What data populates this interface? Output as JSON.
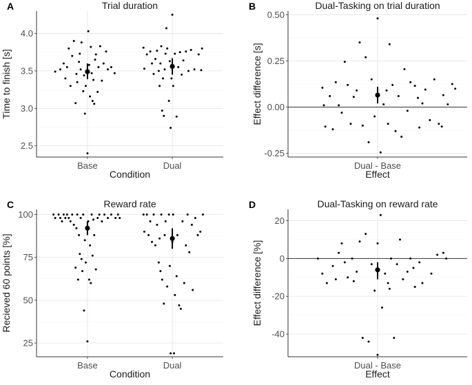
{
  "chart_data": [
    {
      "id": "A",
      "type": "scatter",
      "tag": "A",
      "title": "Trial duration",
      "xlabel": "Condition",
      "ylabel": "Time to finish [s]",
      "categories": [
        "Base",
        "Dual"
      ],
      "ylim": [
        2.35,
        4.3
      ],
      "yticks": [
        2.5,
        3.0,
        3.5,
        4.0
      ],
      "ytick_labels": [
        "2.5",
        "3.0",
        "3.5",
        "4.0"
      ],
      "summary": [
        {
          "category": "Base",
          "mean": 3.49,
          "ci": [
            3.39,
            3.6
          ]
        },
        {
          "category": "Dual",
          "mean": 3.56,
          "ci": [
            3.45,
            3.67
          ]
        }
      ],
      "points": [
        {
          "x": 0.62,
          "y": 3.49
        },
        {
          "x": 0.68,
          "y": 3.52
        },
        {
          "x": 0.72,
          "y": 3.6
        },
        {
          "x": 0.74,
          "y": 3.4
        },
        {
          "x": 0.76,
          "y": 3.55
        },
        {
          "x": 0.78,
          "y": 3.8
        },
        {
          "x": 0.8,
          "y": 3.3
        },
        {
          "x": 0.82,
          "y": 3.7
        },
        {
          "x": 0.84,
          "y": 3.9
        },
        {
          "x": 0.86,
          "y": 3.07
        },
        {
          "x": 0.87,
          "y": 3.46
        },
        {
          "x": 0.88,
          "y": 3.35
        },
        {
          "x": 0.9,
          "y": 3.62
        },
        {
          "x": 0.91,
          "y": 3.73
        },
        {
          "x": 0.92,
          "y": 3.52
        },
        {
          "x": 0.93,
          "y": 3.88
        },
        {
          "x": 0.95,
          "y": 3.23
        },
        {
          "x": 0.96,
          "y": 3.44
        },
        {
          "x": 0.97,
          "y": 2.93
        },
        {
          "x": 0.98,
          "y": 3.3
        },
        {
          "x": 1.0,
          "y": 2.4
        },
        {
          "x": 1.01,
          "y": 4.03
        },
        {
          "x": 1.02,
          "y": 3.58
        },
        {
          "x": 1.03,
          "y": 3.16
        },
        {
          "x": 1.04,
          "y": 3.82
        },
        {
          "x": 1.05,
          "y": 3.47
        },
        {
          "x": 1.06,
          "y": 3.1
        },
        {
          "x": 1.07,
          "y": 3.38
        },
        {
          "x": 1.08,
          "y": 3.06
        },
        {
          "x": 1.09,
          "y": 3.65
        },
        {
          "x": 1.1,
          "y": 3.72
        },
        {
          "x": 1.12,
          "y": 3.22
        },
        {
          "x": 1.13,
          "y": 3.55
        },
        {
          "x": 1.15,
          "y": 3.83
        },
        {
          "x": 1.17,
          "y": 3.37
        },
        {
          "x": 1.19,
          "y": 3.6
        },
        {
          "x": 1.22,
          "y": 3.76
        },
        {
          "x": 1.24,
          "y": 3.52
        },
        {
          "x": 1.28,
          "y": 3.55
        },
        {
          "x": 1.32,
          "y": 3.47
        },
        {
          "x": 1.66,
          "y": 3.81
        },
        {
          "x": 1.67,
          "y": 3.53
        },
        {
          "x": 1.7,
          "y": 3.72
        },
        {
          "x": 1.74,
          "y": 3.76
        },
        {
          "x": 1.76,
          "y": 3.6
        },
        {
          "x": 1.78,
          "y": 3.46
        },
        {
          "x": 1.8,
          "y": 3.66
        },
        {
          "x": 1.82,
          "y": 3.77
        },
        {
          "x": 1.84,
          "y": 3.5
        },
        {
          "x": 1.85,
          "y": 3.3
        },
        {
          "x": 1.86,
          "y": 3.6
        },
        {
          "x": 1.87,
          "y": 3.83
        },
        {
          "x": 1.88,
          "y": 2.97
        },
        {
          "x": 1.89,
          "y": 3.4
        },
        {
          "x": 1.9,
          "y": 2.9
        },
        {
          "x": 1.91,
          "y": 3.52
        },
        {
          "x": 1.92,
          "y": 3.73
        },
        {
          "x": 1.93,
          "y": 4.07
        },
        {
          "x": 1.94,
          "y": 3.8
        },
        {
          "x": 1.96,
          "y": 3.1
        },
        {
          "x": 1.97,
          "y": 3.63
        },
        {
          "x": 1.98,
          "y": 2.74
        },
        {
          "x": 1.99,
          "y": 3.4
        },
        {
          "x": 2.0,
          "y": 4.25
        },
        {
          "x": 2.01,
          "y": 3.3
        },
        {
          "x": 2.03,
          "y": 3.73
        },
        {
          "x": 2.05,
          "y": 2.89
        },
        {
          "x": 2.07,
          "y": 3.55
        },
        {
          "x": 2.09,
          "y": 3.75
        },
        {
          "x": 2.11,
          "y": 3.45
        },
        {
          "x": 2.13,
          "y": 3.64
        },
        {
          "x": 2.16,
          "y": 3.76
        },
        {
          "x": 2.19,
          "y": 3.5
        },
        {
          "x": 2.22,
          "y": 3.78
        },
        {
          "x": 2.26,
          "y": 3.52
        },
        {
          "x": 2.31,
          "y": 3.72
        },
        {
          "x": 2.35,
          "y": 3.8
        },
        {
          "x": 2.34,
          "y": 3.51
        }
      ]
    },
    {
      "id": "B",
      "type": "scatter",
      "tag": "B",
      "title": "Dual-Tasking on trial duration",
      "xlabel": "Effect",
      "ylabel": "Effect difference [s]",
      "categories": [
        "Dual - Base"
      ],
      "ylim": [
        -0.27,
        0.52
      ],
      "yticks": [
        -0.25,
        0.0,
        0.25,
        0.5
      ],
      "ytick_labels": [
        "-0.25",
        "0.00",
        "0.25",
        "0.50"
      ],
      "hline": 0,
      "summary": [
        {
          "category": "Dual - Base",
          "mean": 0.065,
          "ci": [
            0.02,
            0.11
          ]
        }
      ],
      "points": [
        {
          "x": 0.63,
          "y": 0.105
        },
        {
          "x": 0.64,
          "y": 0.01
        },
        {
          "x": 0.65,
          "y": -0.105
        },
        {
          "x": 0.68,
          "y": 0.06
        },
        {
          "x": 0.7,
          "y": -0.12
        },
        {
          "x": 0.72,
          "y": 0.135
        },
        {
          "x": 0.74,
          "y": 0.01
        },
        {
          "x": 0.76,
          "y": -0.03
        },
        {
          "x": 0.78,
          "y": 0.245
        },
        {
          "x": 0.8,
          "y": 0.12
        },
        {
          "x": 0.82,
          "y": -0.09
        },
        {
          "x": 0.84,
          "y": 0.055
        },
        {
          "x": 0.86,
          "y": 0.09
        },
        {
          "x": 0.88,
          "y": 0.35
        },
        {
          "x": 0.9,
          "y": -0.1
        },
        {
          "x": 0.92,
          "y": 0.27
        },
        {
          "x": 0.94,
          "y": -0.19
        },
        {
          "x": 0.96,
          "y": 0.15
        },
        {
          "x": 0.98,
          "y": -0.05
        },
        {
          "x": 1.0,
          "y": 0.48
        },
        {
          "x": 1.02,
          "y": -0.245
        },
        {
          "x": 1.04,
          "y": 0.015
        },
        {
          "x": 1.06,
          "y": 0.09
        },
        {
          "x": 1.07,
          "y": -0.09
        },
        {
          "x": 1.08,
          "y": 0.34
        },
        {
          "x": 1.1,
          "y": 0.12
        },
        {
          "x": 1.12,
          "y": -0.13
        },
        {
          "x": 1.14,
          "y": 0.06
        },
        {
          "x": 1.16,
          "y": -0.16
        },
        {
          "x": 1.18,
          "y": 0.205
        },
        {
          "x": 1.2,
          "y": -0.02
        },
        {
          "x": 1.22,
          "y": 0.135
        },
        {
          "x": 1.25,
          "y": 0.115
        },
        {
          "x": 1.28,
          "y": -0.11
        },
        {
          "x": 1.3,
          "y": 0.02
        },
        {
          "x": 1.32,
          "y": 0.095
        },
        {
          "x": 1.35,
          "y": -0.07
        },
        {
          "x": 1.38,
          "y": 0.15
        },
        {
          "x": 1.41,
          "y": -0.09
        },
        {
          "x": 1.44,
          "y": 0.065
        },
        {
          "x": 1.47,
          "y": 0.015
        },
        {
          "x": 1.5,
          "y": 0.125
        },
        {
          "x": 1.27,
          "y": 0.05
        },
        {
          "x": 1.52,
          "y": 0.1
        },
        {
          "x": 1.43,
          "y": -0.105
        }
      ]
    },
    {
      "id": "C",
      "type": "scatter",
      "tag": "C",
      "title": "Reward rate",
      "xlabel": "Condition",
      "ylabel": "Recieved 60 points [%]",
      "categories": [
        "Base",
        "Dual"
      ],
      "ylim": [
        17,
        103
      ],
      "yticks": [
        25,
        50,
        75,
        100
      ],
      "ytick_labels": [
        "25",
        "50",
        "75",
        "100"
      ],
      "summary": [
        {
          "category": "Base",
          "mean": 92,
          "ci": [
            88,
            96
          ]
        },
        {
          "category": "Dual",
          "mean": 86,
          "ci": [
            80,
            92
          ]
        }
      ],
      "points": [
        {
          "x": 0.6,
          "y": 100
        },
        {
          "x": 0.62,
          "y": 98
        },
        {
          "x": 0.66,
          "y": 100
        },
        {
          "x": 0.68,
          "y": 98
        },
        {
          "x": 0.7,
          "y": 96
        },
        {
          "x": 0.72,
          "y": 100
        },
        {
          "x": 0.74,
          "y": 98
        },
        {
          "x": 0.76,
          "y": 100
        },
        {
          "x": 0.78,
          "y": 98
        },
        {
          "x": 0.8,
          "y": 96
        },
        {
          "x": 0.82,
          "y": 100
        },
        {
          "x": 0.84,
          "y": 94
        },
        {
          "x": 0.86,
          "y": 69
        },
        {
          "x": 0.87,
          "y": 92
        },
        {
          "x": 0.88,
          "y": 100
        },
        {
          "x": 0.89,
          "y": 62
        },
        {
          "x": 0.9,
          "y": 88
        },
        {
          "x": 0.91,
          "y": 77
        },
        {
          "x": 0.92,
          "y": 98
        },
        {
          "x": 0.93,
          "y": 74
        },
        {
          "x": 0.94,
          "y": 67
        },
        {
          "x": 0.95,
          "y": 100
        },
        {
          "x": 0.96,
          "y": 44
        },
        {
          "x": 0.97,
          "y": 85
        },
        {
          "x": 0.98,
          "y": 72
        },
        {
          "x": 1.0,
          "y": 26
        },
        {
          "x": 1.01,
          "y": 96
        },
        {
          "x": 1.02,
          "y": 62
        },
        {
          "x": 1.03,
          "y": 82
        },
        {
          "x": 1.04,
          "y": 60
        },
        {
          "x": 1.05,
          "y": 100
        },
        {
          "x": 1.06,
          "y": 76
        },
        {
          "x": 1.07,
          "y": 97
        },
        {
          "x": 1.08,
          "y": 88
        },
        {
          "x": 1.1,
          "y": 68
        },
        {
          "x": 1.12,
          "y": 98
        },
        {
          "x": 1.14,
          "y": 100
        },
        {
          "x": 1.17,
          "y": 96
        },
        {
          "x": 1.2,
          "y": 100
        },
        {
          "x": 1.24,
          "y": 98
        },
        {
          "x": 1.28,
          "y": 100
        },
        {
          "x": 1.33,
          "y": 98
        },
        {
          "x": 1.36,
          "y": 100
        },
        {
          "x": 1.38,
          "y": 98
        },
        {
          "x": 1.66,
          "y": 100
        },
        {
          "x": 1.67,
          "y": 90
        },
        {
          "x": 1.7,
          "y": 100
        },
        {
          "x": 1.72,
          "y": 88
        },
        {
          "x": 1.74,
          "y": 96
        },
        {
          "x": 1.76,
          "y": 84
        },
        {
          "x": 1.78,
          "y": 100
        },
        {
          "x": 1.8,
          "y": 82
        },
        {
          "x": 1.82,
          "y": 94
        },
        {
          "x": 1.84,
          "y": 72
        },
        {
          "x": 1.85,
          "y": 86
        },
        {
          "x": 1.86,
          "y": 67
        },
        {
          "x": 1.87,
          "y": 100
        },
        {
          "x": 1.88,
          "y": 62
        },
        {
          "x": 1.9,
          "y": 48
        },
        {
          "x": 1.91,
          "y": 88
        },
        {
          "x": 1.92,
          "y": 96
        },
        {
          "x": 1.94,
          "y": 58
        },
        {
          "x": 1.96,
          "y": 100
        },
        {
          "x": 1.97,
          "y": 70
        },
        {
          "x": 1.98,
          "y": 19
        },
        {
          "x": 2.0,
          "y": 84
        },
        {
          "x": 2.01,
          "y": 100
        },
        {
          "x": 2.02,
          "y": 19
        },
        {
          "x": 2.03,
          "y": 53
        },
        {
          "x": 2.05,
          "y": 64
        },
        {
          "x": 2.06,
          "y": 88
        },
        {
          "x": 2.08,
          "y": 47
        },
        {
          "x": 2.1,
          "y": 45
        },
        {
          "x": 2.12,
          "y": 96
        },
        {
          "x": 2.14,
          "y": 60
        },
        {
          "x": 2.16,
          "y": 82
        },
        {
          "x": 2.18,
          "y": 100
        },
        {
          "x": 2.2,
          "y": 78
        },
        {
          "x": 2.23,
          "y": 94
        },
        {
          "x": 2.27,
          "y": 98
        },
        {
          "x": 2.3,
          "y": 88
        },
        {
          "x": 2.33,
          "y": 90
        },
        {
          "x": 2.36,
          "y": 100
        },
        {
          "x": 2.24,
          "y": 56
        }
      ]
    },
    {
      "id": "D",
      "type": "scatter",
      "tag": "D",
      "title": "Dual-Tasking on reward rate",
      "xlabel": "Effect",
      "ylabel": "Effect difference [%]",
      "categories": [
        "Dual - Base"
      ],
      "ylim": [
        -52,
        26
      ],
      "yticks": [
        -40,
        -20,
        0,
        20
      ],
      "ytick_labels": [
        "-40",
        "-20",
        "0",
        "20"
      ],
      "hline": 0,
      "summary": [
        {
          "category": "Dual - Base",
          "mean": -6,
          "ci": [
            -11,
            -2
          ]
        }
      ],
      "points": [
        {
          "x": 0.6,
          "y": 0
        },
        {
          "x": 0.63,
          "y": -8
        },
        {
          "x": 0.66,
          "y": -13
        },
        {
          "x": 0.7,
          "y": -4
        },
        {
          "x": 0.72,
          "y": -11
        },
        {
          "x": 0.74,
          "y": 3
        },
        {
          "x": 0.76,
          "y": 8
        },
        {
          "x": 0.78,
          "y": -2
        },
        {
          "x": 0.8,
          "y": -10
        },
        {
          "x": 0.83,
          "y": 0
        },
        {
          "x": 0.86,
          "y": -7
        },
        {
          "x": 0.88,
          "y": 9
        },
        {
          "x": 0.9,
          "y": -42
        },
        {
          "x": 0.92,
          "y": 13
        },
        {
          "x": 0.94,
          "y": -44
        },
        {
          "x": 0.96,
          "y": -3
        },
        {
          "x": 0.98,
          "y": -17
        },
        {
          "x": 1.0,
          "y": -51
        },
        {
          "x": 1.02,
          "y": 23
        },
        {
          "x": 1.03,
          "y": -26
        },
        {
          "x": 1.05,
          "y": -8
        },
        {
          "x": 1.07,
          "y": -13
        },
        {
          "x": 1.09,
          "y": 0
        },
        {
          "x": 1.11,
          "y": -42
        },
        {
          "x": 1.13,
          "y": -3
        },
        {
          "x": 1.15,
          "y": 10
        },
        {
          "x": 1.17,
          "y": -11
        },
        {
          "x": 1.2,
          "y": -7
        },
        {
          "x": 1.22,
          "y": 0
        },
        {
          "x": 1.25,
          "y": -15
        },
        {
          "x": 1.28,
          "y": -2
        },
        {
          "x": 1.3,
          "y": -13
        },
        {
          "x": 1.36,
          "y": -8
        },
        {
          "x": 1.4,
          "y": 2
        },
        {
          "x": 1.44,
          "y": 3
        },
        {
          "x": 1.46,
          "y": 0
        },
        {
          "x": 1.0,
          "y": 8
        },
        {
          "x": 1.08,
          "y": -16
        },
        {
          "x": 0.84,
          "y": -12
        },
        {
          "x": 1.24,
          "y": -5
        }
      ]
    }
  ]
}
